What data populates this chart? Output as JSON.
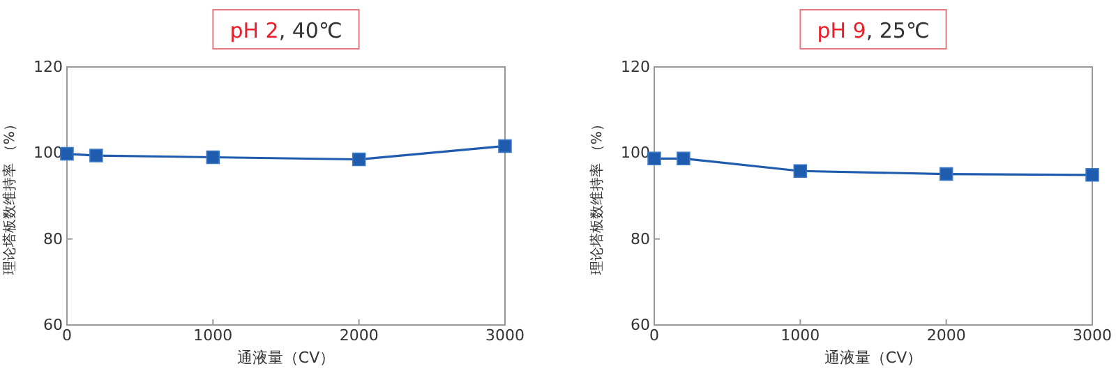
{
  "chart_data": [
    {
      "type": "line",
      "title": "pH 2, 40℃",
      "xlabel": "通液量（CV）",
      "ylabel": "理论塔板数维持率 （%）",
      "x": [
        0,
        200,
        1000,
        2000,
        3000
      ],
      "xlim": [
        0,
        3000
      ],
      "xticks": [
        0,
        1000,
        2000,
        3000
      ],
      "ylim": [
        60,
        120
      ],
      "yticks": [
        60,
        80,
        100,
        120
      ],
      "marker": "square",
      "series": [
        {
          "color": "#1f5cad",
          "values": [
            99.8,
            99.4,
            99.0,
            98.5,
            101.6
          ]
        }
      ]
    },
    {
      "type": "line",
      "title": "pH 9, 25℃",
      "xlabel": "通液量（CV）",
      "ylabel": "理论塔板数维持率 （%）",
      "x": [
        0,
        200,
        1000,
        2000,
        3000
      ],
      "xlim": [
        0,
        3000
      ],
      "xticks": [
        0,
        1000,
        2000,
        3000
      ],
      "ylim": [
        60,
        120
      ],
      "yticks": [
        60,
        80,
        100,
        120
      ],
      "marker": "square",
      "series": [
        {
          "color": "#1f5cad",
          "values": [
            98.7,
            98.7,
            95.8,
            95.1,
            94.9
          ]
        }
      ]
    }
  ]
}
